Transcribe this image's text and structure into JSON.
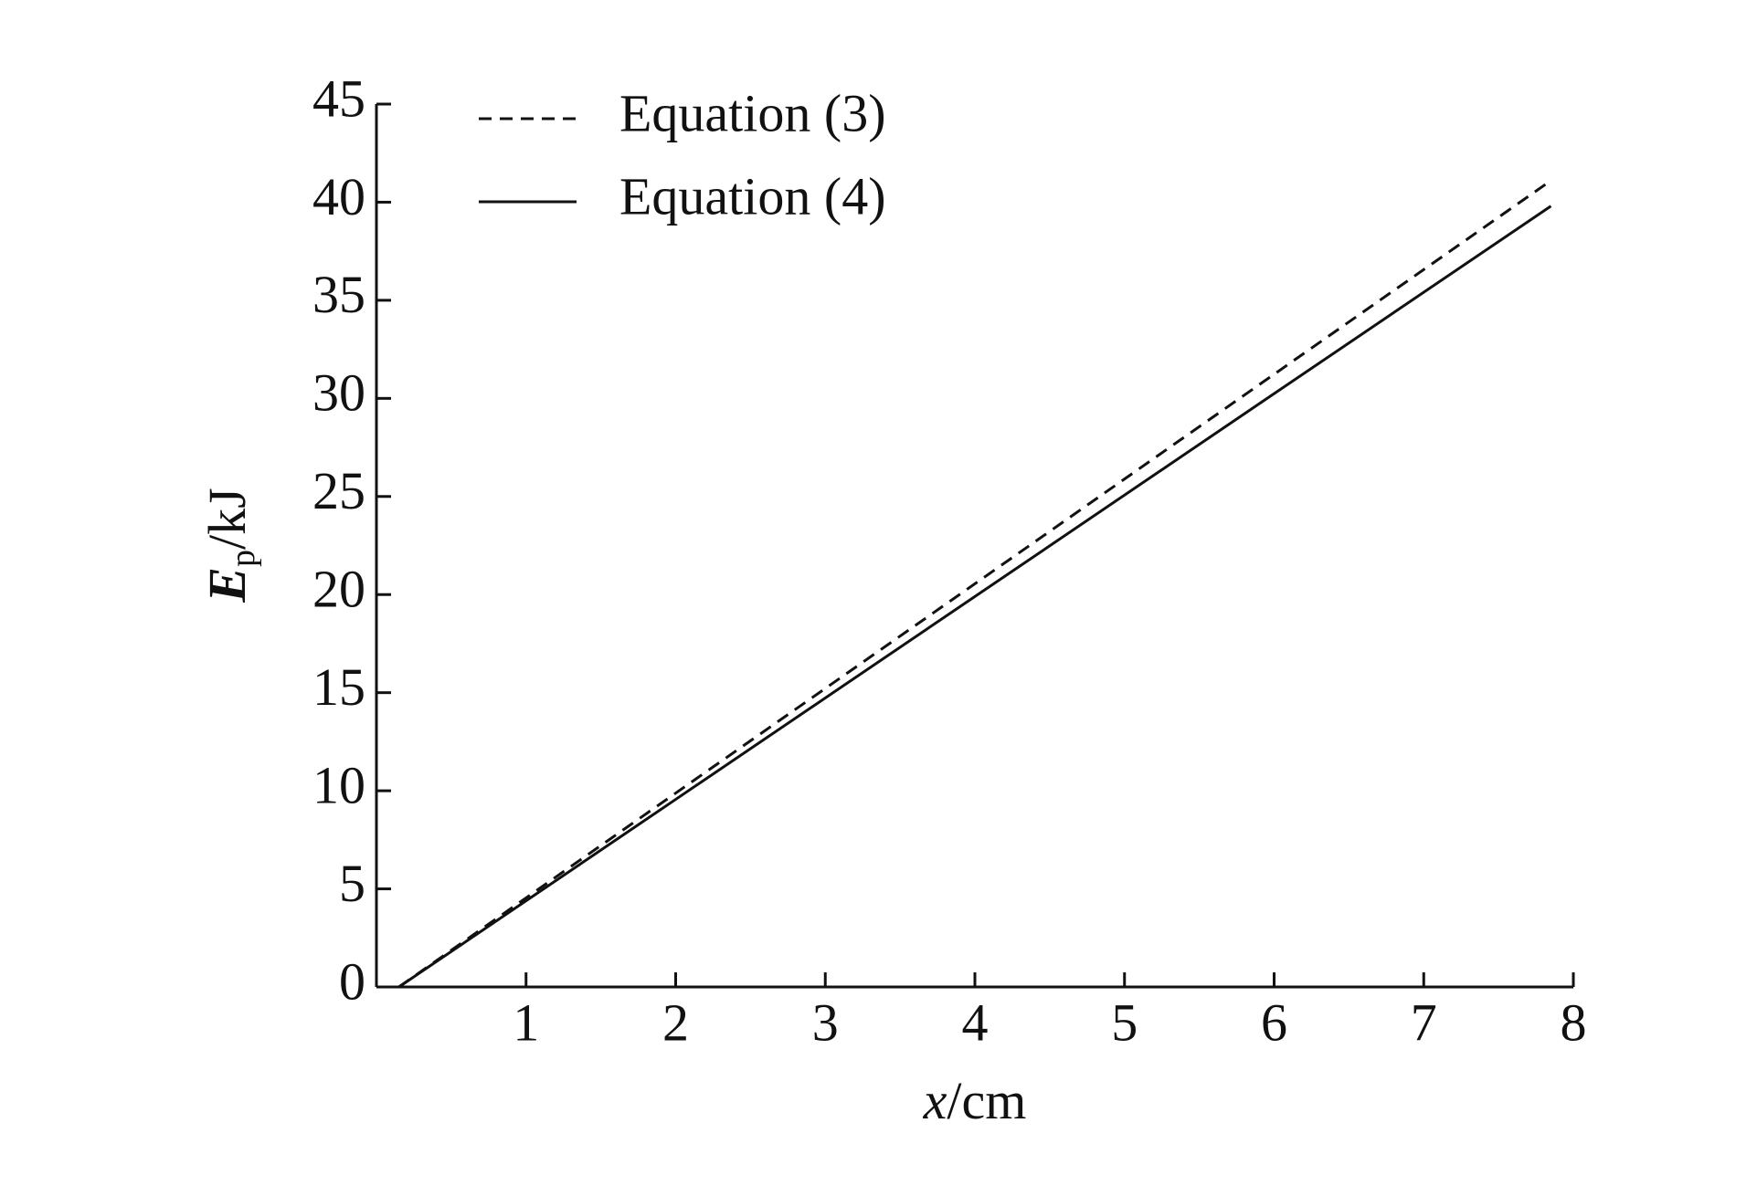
{
  "chart_data": {
    "type": "line",
    "xlabel": {
      "symbol": "x",
      "unit": "/cm"
    },
    "ylabel": {
      "symbol": "E",
      "subscript": "p",
      "unit": "/kJ"
    },
    "x": [
      0.15,
      2,
      4,
      6,
      7.85
    ],
    "series": [
      {
        "name": "Equation (3)",
        "color": "#111111",
        "dash": "dashed",
        "values": [
          0,
          9.88,
          20.55,
          31.23,
          41.1
        ]
      },
      {
        "name": "Equation (4)",
        "color": "#111111",
        "dash": "solid",
        "values": [
          0,
          9.56,
          19.9,
          30.24,
          39.8
        ]
      }
    ],
    "xlim": [
      0,
      8
    ],
    "ylim": [
      0,
      45
    ],
    "xticks": [
      1,
      2,
      3,
      4,
      5,
      6,
      7,
      8
    ],
    "yticks": [
      0,
      5,
      10,
      15,
      20,
      25,
      30,
      35,
      40,
      45
    ],
    "grid": false,
    "legend": "upper left"
  }
}
